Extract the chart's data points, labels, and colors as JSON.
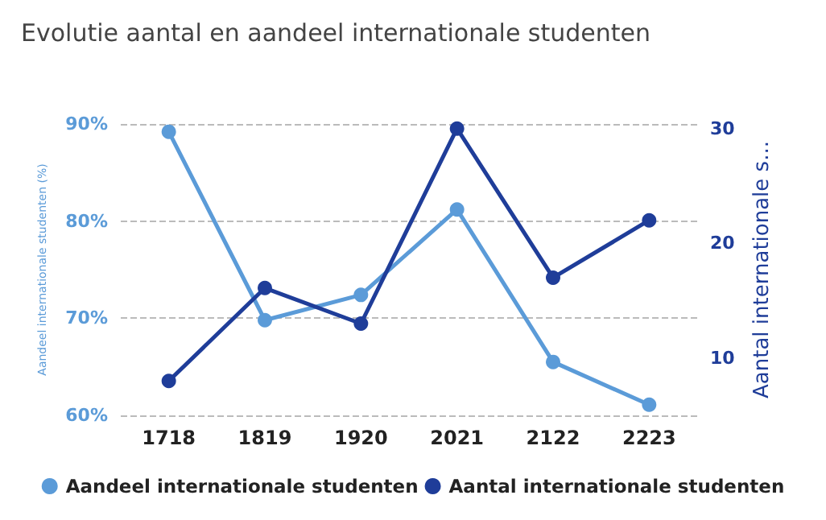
{
  "chart_data": {
    "type": "line",
    "title": "Evolutie aantal en aandeel internationale studenten",
    "categories": [
      "1718",
      "1819",
      "1920",
      "2021",
      "2122",
      "2223"
    ],
    "series": [
      {
        "name": "Aandeel internationale studenten",
        "color": "#5b9bd8",
        "values": [
          89.2,
          69.8,
          72.4,
          81.2,
          65.5,
          61.1
        ]
      },
      {
        "name": "Aantal internationale studenten",
        "color": "#1f3d99",
        "axis": "y2",
        "values": [
          8,
          16.1,
          13,
          30,
          17,
          22
        ]
      }
    ],
    "ylabel": "Aandeel internationale studenten (%)",
    "y2label": "Aantal internationale s...",
    "ylim": [
      60,
      90
    ],
    "yticks": [
      {
        "value": 60,
        "label": "60%"
      },
      {
        "value": 70,
        "label": "70%"
      },
      {
        "value": 80,
        "label": "80%"
      },
      {
        "value": 90,
        "label": "90%"
      }
    ],
    "y2lim": [
      5,
      30.4
    ],
    "y2ticks": [
      10,
      20,
      30
    ],
    "grid": "y",
    "legend": "bottom",
    "marker": "circle",
    "line_style": "solid"
  }
}
